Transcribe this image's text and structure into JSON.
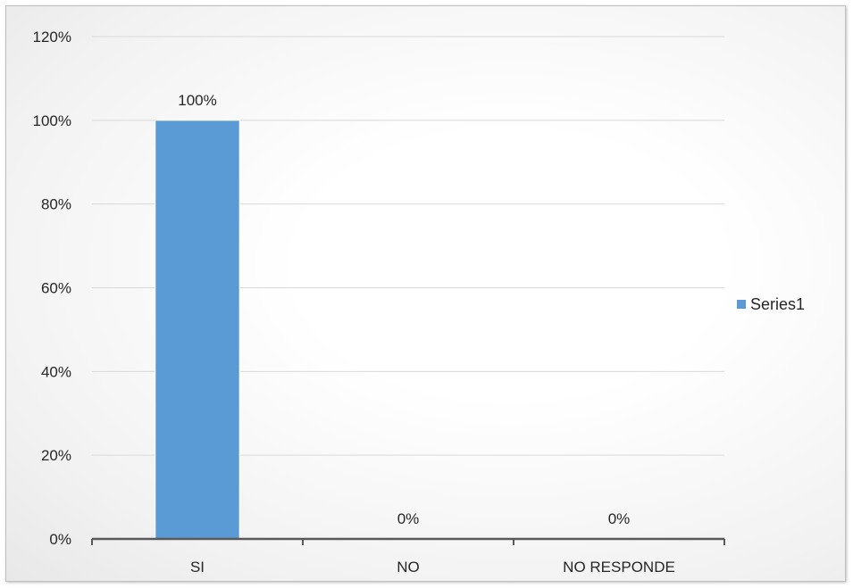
{
  "chart_data": {
    "type": "bar",
    "categories": [
      "SI",
      "NO",
      "NO RESPONDE"
    ],
    "series": [
      {
        "name": "Series1",
        "values": [
          100,
          0,
          0
        ],
        "color": "#5b9bd5"
      }
    ],
    "data_labels": [
      "100%",
      "0%",
      "0%"
    ],
    "y_ticks": [
      "0%",
      "20%",
      "40%",
      "60%",
      "80%",
      "100%",
      "120%"
    ],
    "ylim": [
      0,
      120
    ],
    "y_unit": "%",
    "grid": true,
    "legend_position": "right",
    "gridline_color": "#d9d9d9",
    "axis_color": "#595959"
  }
}
